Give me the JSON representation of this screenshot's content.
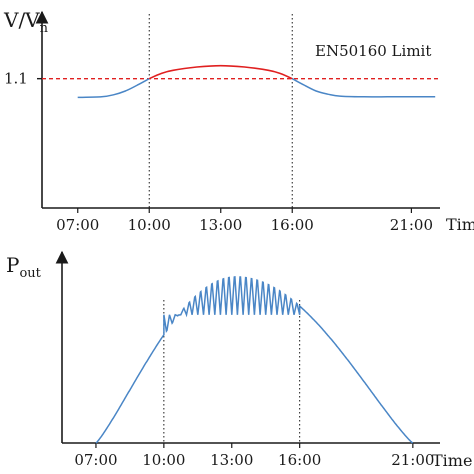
{
  "colors": {
    "voltage": "#4a86c6",
    "limit": "#e02020",
    "power": "#4a86c6",
    "axis": "#1a1a1a"
  },
  "chart_data": [
    {
      "type": "line",
      "ylabel": "V/V",
      "ylabel_sub": "n",
      "xlabel": "Time",
      "categories": [
        "07:00",
        "10:00",
        "13:00",
        "16:00",
        "21:00"
      ],
      "x_hours": [
        7,
        10,
        13,
        16,
        21
      ],
      "xlim": [
        5.5,
        22.2
      ],
      "ylim": [
        0.9,
        1.2
      ],
      "yticks": [
        {
          "value": 1.1,
          "label": "1.1"
        }
      ],
      "limit": {
        "value": 1.1,
        "label": "EN50160 Limit"
      },
      "series": [
        {
          "x": [
            7,
            8,
            8.5,
            9,
            9.5,
            10,
            10.5,
            11,
            12,
            13,
            14,
            15,
            15.5,
            16,
            16.5,
            17,
            17.5,
            18,
            19,
            20,
            21,
            22
          ],
          "y": [
            1.071,
            1.072,
            1.075,
            1.081,
            1.09,
            1.1,
            1.108,
            1.113,
            1.118,
            1.12,
            1.118,
            1.113,
            1.108,
            1.1,
            1.09,
            1.081,
            1.076,
            1.073,
            1.072,
            1.072,
            1.072,
            1.072
          ]
        }
      ],
      "vlines": [
        10,
        16
      ]
    },
    {
      "type": "line",
      "ylabel": "P",
      "ylabel_sub": "out",
      "xlabel": "Time",
      "categories": [
        "07:00",
        "10:00",
        "13:00",
        "16:00",
        "21:00"
      ],
      "x_hours": [
        7,
        10,
        13,
        16,
        21
      ],
      "xlim": [
        5.5,
        22.2
      ],
      "ylim": [
        0,
        1.15
      ],
      "envelope": {
        "sunrise": 7,
        "sunset": 21,
        "peak_hour": 13.2,
        "peak": 1.0
      },
      "curtailment": {
        "start": 10,
        "end": 16,
        "level": 0.772
      },
      "vlines": [
        10,
        16
      ]
    }
  ]
}
